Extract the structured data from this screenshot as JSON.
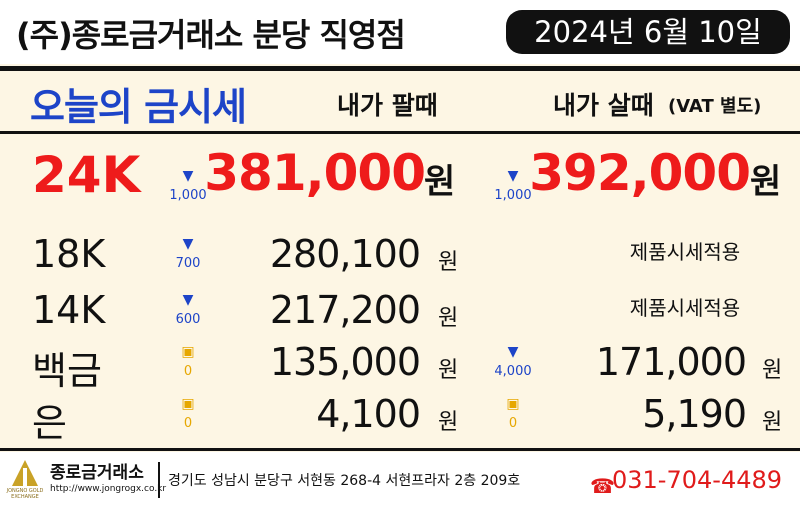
{
  "header": {
    "title": "(주)종로금거래소 분당 직영점",
    "date": "2024년 6월 10일"
  },
  "table": {
    "title": "오늘의 금시세",
    "columns": [
      "내가 팔때",
      "내가 살때"
    ],
    "vat_note": "(VAT 별도)",
    "currency": "원",
    "rows": [
      {
        "name": "24K",
        "sell_change": "1,000",
        "sell": "381,000",
        "buy_change": "1,000",
        "buy": "392,000"
      },
      {
        "name": "18K",
        "sell_change": "700",
        "sell": "280,100",
        "buy_change": null,
        "buy": "제품시세적용"
      },
      {
        "name": "14K",
        "sell_change": "600",
        "sell": "217,200",
        "buy_change": null,
        "buy": "제품시세적용"
      },
      {
        "name": "백금",
        "sell_change": "0",
        "sell": "135,000",
        "buy_change": "4,000",
        "buy": "171,000"
      },
      {
        "name": "은",
        "sell_change": "0",
        "sell": "4,100",
        "buy_change": "0",
        "buy": "5,190"
      }
    ]
  },
  "footer": {
    "company": "종로금거래소",
    "url": "http://www.jongrogx.co.kr",
    "logo_text": "JONGNO GOLD EXCHANGE",
    "address": "경기도 성남시 분당구 서현동 268-4 서현프라자 2층 209호",
    "phone": "031-704-4489"
  }
}
